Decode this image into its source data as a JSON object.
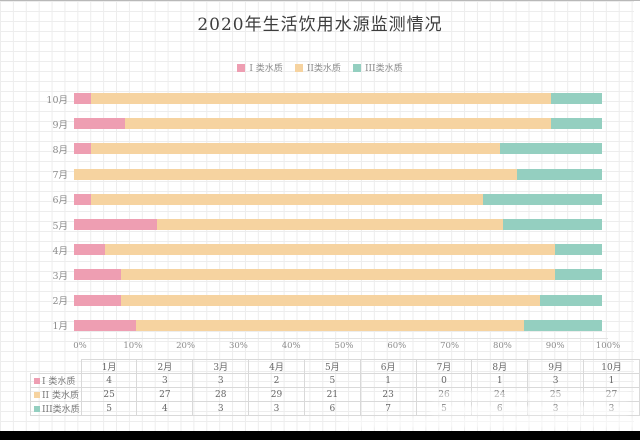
{
  "title": "2020年生活饮用水源监测情况",
  "colors": {
    "class1": "#ee9eb2",
    "class2": "#f6d3a0",
    "class3": "#94cfc0",
    "grid": "#ededed",
    "axis_text": "#8c8c8c",
    "table_border": "#d9d9d9",
    "bottom_bar": "#000000"
  },
  "legend": {
    "items": [
      {
        "label": "I 类水质",
        "color": "#ee9eb2"
      },
      {
        "label": "II类水质",
        "color": "#f6d3a0"
      },
      {
        "label": "III类水质",
        "color": "#94cfc0"
      }
    ]
  },
  "chart_data": {
    "type": "bar",
    "stacked": true,
    "percent_stacked": true,
    "orientation": "horizontal",
    "title": "2020年生活饮用水源监测情况",
    "categories": [
      "1月",
      "2月",
      "3月",
      "4月",
      "5月",
      "6月",
      "7月",
      "8月",
      "9月",
      "10月"
    ],
    "category_order_top_to_bottom": [
      "10月",
      "9月",
      "8月",
      "7月",
      "6月",
      "5月",
      "4月",
      "3月",
      "2月",
      "1月"
    ],
    "series": [
      {
        "name": "I 类水质",
        "color": "#ee9eb2",
        "values": [
          4,
          3,
          3,
          2,
          5,
          1,
          0,
          1,
          3,
          1
        ]
      },
      {
        "name": "II类水质",
        "color": "#f6d3a0",
        "values": [
          25,
          27,
          28,
          29,
          21,
          23,
          26,
          24,
          25,
          27
        ]
      },
      {
        "name": "III类水质",
        "color": "#94cfc0",
        "values": [
          5,
          4,
          3,
          3,
          6,
          7,
          5,
          6,
          3,
          3
        ]
      }
    ],
    "x_axis": {
      "ticks": [
        "0%",
        "10%",
        "20%",
        "30%",
        "40%",
        "50%",
        "60%",
        "70%",
        "80%",
        "90%",
        "100%"
      ],
      "min": 0,
      "max": 100
    },
    "legend_position": "top",
    "grid": false
  },
  "table": {
    "header": [
      "1月",
      "2月",
      "3月",
      "4月",
      "5月",
      "6月",
      "7月",
      "8月",
      "9月",
      "10月"
    ],
    "row_labels": [
      "I 类水质",
      "II 类水质",
      "III类水质"
    ]
  }
}
